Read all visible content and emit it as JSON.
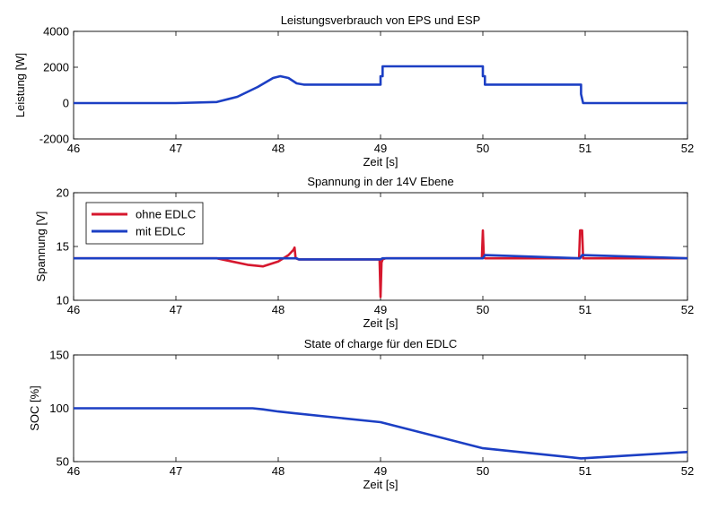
{
  "chart_data": [
    {
      "type": "line",
      "title": "Leistungsverbrauch von EPS und ESP",
      "xlabel": "Zeit [s]",
      "ylabel": "Leistung [W]",
      "xlim": [
        46,
        52
      ],
      "ylim": [
        -2000,
        4000
      ],
      "xticks": [
        46,
        47,
        48,
        49,
        50,
        51,
        52
      ],
      "yticks": [
        -2000,
        0,
        2000,
        4000
      ],
      "xtick_labels": [
        "46",
        "47",
        "48",
        "49",
        "50",
        "51",
        "52"
      ],
      "ytick_labels": [
        "-2000",
        "0",
        "2000",
        "4000"
      ],
      "grid": false,
      "legend": null,
      "series": [
        {
          "name": "Leistung",
          "color": "#1c3fc4",
          "x": [
            46.0,
            47.0,
            47.4,
            47.6,
            47.8,
            47.95,
            48.02,
            48.1,
            48.18,
            48.25,
            49.0,
            49.0,
            49.02,
            49.02,
            50.0,
            50.0,
            50.02,
            50.02,
            50.96,
            50.96,
            50.98,
            52.0
          ],
          "y": [
            0,
            0,
            60,
            350,
            900,
            1400,
            1500,
            1400,
            1100,
            1030,
            1030,
            1500,
            1500,
            2050,
            2050,
            1500,
            1500,
            1030,
            1030,
            500,
            0,
            0
          ]
        }
      ]
    },
    {
      "type": "line",
      "title": "Spannung in der 14V Ebene",
      "xlabel": "Zeit [s]",
      "ylabel": "Spannung [V]",
      "xlim": [
        46,
        52
      ],
      "ylim": [
        10,
        20
      ],
      "xticks": [
        46,
        47,
        48,
        49,
        50,
        51,
        52
      ],
      "yticks": [
        10,
        15,
        20
      ],
      "xtick_labels": [
        "46",
        "47",
        "48",
        "49",
        "50",
        "51",
        "52"
      ],
      "ytick_labels": [
        "10",
        "15",
        "20"
      ],
      "grid": false,
      "legend": "top-left",
      "series": [
        {
          "name": "ohne EDLC",
          "color": "#d6182e",
          "x": [
            46.0,
            47.4,
            47.55,
            47.7,
            47.85,
            48.0,
            48.1,
            48.15,
            48.16,
            48.17,
            48.2,
            48.99,
            49.0,
            49.01,
            49.02,
            49.05,
            49.99,
            50.0,
            50.01,
            50.02,
            50.05,
            50.94,
            50.95,
            50.97,
            50.98,
            51.0,
            52.0
          ],
          "y": [
            13.9,
            13.9,
            13.6,
            13.3,
            13.15,
            13.6,
            14.2,
            14.7,
            14.9,
            13.9,
            13.8,
            13.8,
            10.3,
            13.5,
            13.8,
            13.9,
            13.9,
            16.5,
            14.0,
            13.9,
            13.9,
            13.9,
            16.5,
            16.5,
            13.9,
            13.9,
            13.9
          ]
        },
        {
          "name": "mit EDLC",
          "color": "#1c3fc4",
          "x": [
            46.0,
            48.18,
            48.2,
            49.0,
            49.02,
            50.0,
            50.02,
            50.95,
            50.97,
            52.0
          ],
          "y": [
            13.9,
            13.9,
            13.8,
            13.8,
            13.9,
            13.9,
            14.2,
            13.9,
            14.2,
            13.9
          ]
        }
      ]
    },
    {
      "type": "line",
      "title": "State of charge für den EDLC",
      "xlabel": "Zeit [s]",
      "ylabel": "SOC [%]",
      "xlim": [
        46,
        52
      ],
      "ylim": [
        50,
        150
      ],
      "xticks": [
        46,
        47,
        48,
        49,
        50,
        51,
        52
      ],
      "yticks": [
        50,
        100,
        150
      ],
      "xtick_labels": [
        "46",
        "47",
        "48",
        "49",
        "50",
        "51",
        "52"
      ],
      "ytick_labels": [
        "50",
        "100",
        "150"
      ],
      "grid": false,
      "legend": null,
      "series": [
        {
          "name": "SOC",
          "color": "#1c3fc4",
          "x": [
            46.0,
            47.75,
            47.85,
            48.0,
            48.15,
            49.0,
            50.0,
            50.96,
            52.0
          ],
          "y": [
            100,
            100,
            99,
            97,
            95.5,
            87,
            62.5,
            53,
            59
          ]
        }
      ]
    }
  ]
}
